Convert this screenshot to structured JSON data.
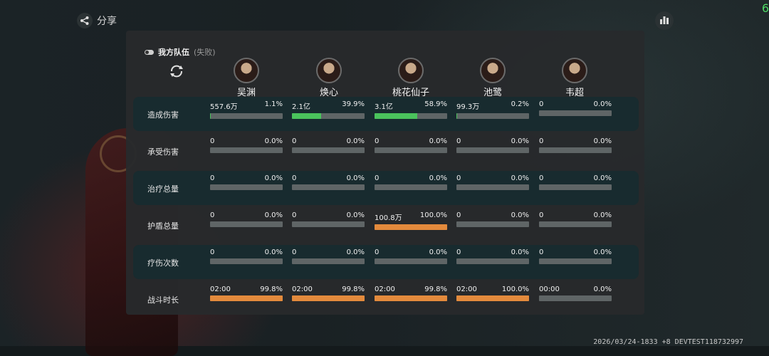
{
  "top": {
    "share_label": "分享",
    "corner_digit": "6"
  },
  "footer": "2026/03/24-1833 +8 DEVTEST118732997",
  "team": {
    "name": "我方队伍",
    "status": "(失败)"
  },
  "heroes": [
    "吴渊",
    "焕心",
    "桃花仙子",
    "池鹭",
    "韦超"
  ],
  "colors": {
    "green": "#4ac35c",
    "orange": "#e38a3c",
    "track": "#5f6566"
  },
  "rows": [
    {
      "label": "造成伤害",
      "cells": [
        {
          "value": "557.6万",
          "pct": "1.1%",
          "fill": 0.011,
          "color": "green"
        },
        {
          "value": "2.1亿",
          "pct": "39.9%",
          "fill": 0.399,
          "color": "green"
        },
        {
          "value": "3.1亿",
          "pct": "58.9%",
          "fill": 0.589,
          "color": "green"
        },
        {
          "value": "99.3万",
          "pct": "0.2%",
          "fill": 0.002,
          "color": "green"
        },
        {
          "value": "0",
          "pct": "0.0%",
          "fill": 0,
          "color": "green"
        }
      ]
    },
    {
      "label": "承受伤害",
      "cells": [
        {
          "value": "0",
          "pct": "0.0%",
          "fill": 0,
          "color": "orange"
        },
        {
          "value": "0",
          "pct": "0.0%",
          "fill": 0,
          "color": "orange"
        },
        {
          "value": "0",
          "pct": "0.0%",
          "fill": 0,
          "color": "orange"
        },
        {
          "value": "0",
          "pct": "0.0%",
          "fill": 0,
          "color": "orange"
        },
        {
          "value": "0",
          "pct": "0.0%",
          "fill": 0,
          "color": "orange"
        }
      ]
    },
    {
      "label": "治疗总量",
      "cells": [
        {
          "value": "0",
          "pct": "0.0%",
          "fill": 0,
          "color": "orange"
        },
        {
          "value": "0",
          "pct": "0.0%",
          "fill": 0,
          "color": "orange"
        },
        {
          "value": "0",
          "pct": "0.0%",
          "fill": 0,
          "color": "orange"
        },
        {
          "value": "0",
          "pct": "0.0%",
          "fill": 0,
          "color": "orange"
        },
        {
          "value": "0",
          "pct": "0.0%",
          "fill": 0,
          "color": "orange"
        }
      ]
    },
    {
      "label": "护盾总量",
      "cells": [
        {
          "value": "0",
          "pct": "0.0%",
          "fill": 0,
          "color": "orange"
        },
        {
          "value": "0",
          "pct": "0.0%",
          "fill": 0,
          "color": "orange"
        },
        {
          "value": "100.8万",
          "pct": "100.0%",
          "fill": 1,
          "color": "orange"
        },
        {
          "value": "0",
          "pct": "0.0%",
          "fill": 0,
          "color": "orange"
        },
        {
          "value": "0",
          "pct": "0.0%",
          "fill": 0,
          "color": "orange"
        }
      ]
    },
    {
      "label": "疗伤次数",
      "cells": [
        {
          "value": "0",
          "pct": "0.0%",
          "fill": 0,
          "color": "orange"
        },
        {
          "value": "0",
          "pct": "0.0%",
          "fill": 0,
          "color": "orange"
        },
        {
          "value": "0",
          "pct": "0.0%",
          "fill": 0,
          "color": "orange"
        },
        {
          "value": "0",
          "pct": "0.0%",
          "fill": 0,
          "color": "orange"
        },
        {
          "value": "0",
          "pct": "0.0%",
          "fill": 0,
          "color": "orange"
        }
      ]
    },
    {
      "label": "战斗时长",
      "cells": [
        {
          "value": "02:00",
          "pct": "99.8%",
          "fill": 0.998,
          "color": "orange"
        },
        {
          "value": "02:00",
          "pct": "99.8%",
          "fill": 0.998,
          "color": "orange"
        },
        {
          "value": "02:00",
          "pct": "99.8%",
          "fill": 0.998,
          "color": "orange"
        },
        {
          "value": "02:00",
          "pct": "100.0%",
          "fill": 1,
          "color": "orange"
        },
        {
          "value": "00:00",
          "pct": "0.0%",
          "fill": 0,
          "color": "orange"
        }
      ]
    }
  ]
}
